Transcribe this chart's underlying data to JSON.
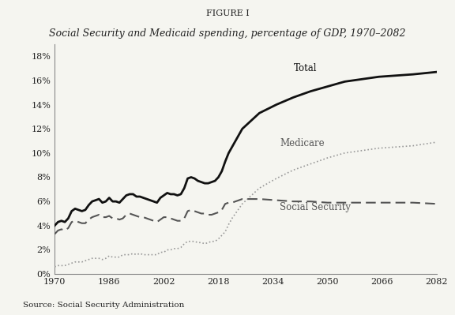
{
  "figure_label": "FIGURE I",
  "title": "Social Security and Medicaid spending, percentage of GDP, 1970–2082",
  "source": "Source: Social Security Administration",
  "background_color": "#f5f5f0",
  "xlim": [
    1970,
    2082
  ],
  "ylim": [
    0,
    0.19
  ],
  "xticks": [
    1970,
    1986,
    2002,
    2018,
    2034,
    2050,
    2066,
    2082
  ],
  "yticks": [
    0.0,
    0.02,
    0.04,
    0.06,
    0.08,
    0.1,
    0.12,
    0.14,
    0.16,
    0.18
  ],
  "total_years": [
    1970,
    1971,
    1972,
    1973,
    1974,
    1975,
    1976,
    1977,
    1978,
    1979,
    1980,
    1981,
    1982,
    1983,
    1984,
    1985,
    1986,
    1987,
    1988,
    1989,
    1990,
    1991,
    1992,
    1993,
    1994,
    1995,
    1996,
    1997,
    1998,
    1999,
    2000,
    2001,
    2002,
    2003,
    2004,
    2005,
    2006,
    2007,
    2008,
    2009,
    2010,
    2011,
    2012,
    2013,
    2014,
    2015,
    2016,
    2017,
    2018,
    2019,
    2020,
    2021,
    2022,
    2023,
    2024,
    2025,
    2030,
    2035,
    2040,
    2045,
    2050,
    2055,
    2060,
    2065,
    2070,
    2075,
    2082
  ],
  "total_values": [
    0.04,
    0.043,
    0.044,
    0.043,
    0.046,
    0.052,
    0.054,
    0.053,
    0.052,
    0.053,
    0.057,
    0.06,
    0.061,
    0.062,
    0.059,
    0.06,
    0.063,
    0.06,
    0.06,
    0.059,
    0.062,
    0.065,
    0.066,
    0.066,
    0.064,
    0.064,
    0.063,
    0.062,
    0.061,
    0.06,
    0.059,
    0.063,
    0.065,
    0.067,
    0.066,
    0.066,
    0.065,
    0.066,
    0.071,
    0.079,
    0.08,
    0.079,
    0.077,
    0.076,
    0.075,
    0.075,
    0.076,
    0.077,
    0.08,
    0.085,
    0.093,
    0.1,
    0.105,
    0.11,
    0.115,
    0.12,
    0.133,
    0.14,
    0.146,
    0.151,
    0.155,
    0.159,
    0.161,
    0.163,
    0.164,
    0.165,
    0.167
  ],
  "ss_years": [
    1970,
    1971,
    1972,
    1973,
    1974,
    1975,
    1976,
    1977,
    1978,
    1979,
    1980,
    1981,
    1982,
    1983,
    1984,
    1985,
    1986,
    1987,
    1988,
    1989,
    1990,
    1991,
    1992,
    1993,
    1994,
    1995,
    1996,
    1997,
    1998,
    1999,
    2000,
    2001,
    2002,
    2003,
    2004,
    2005,
    2006,
    2007,
    2008,
    2009,
    2010,
    2011,
    2012,
    2013,
    2014,
    2015,
    2016,
    2017,
    2018,
    2019,
    2020,
    2021,
    2022,
    2023,
    2024,
    2025,
    2030,
    2035,
    2040,
    2045,
    2050,
    2055,
    2060,
    2065,
    2070,
    2075,
    2082
  ],
  "ss_values": [
    0.033,
    0.036,
    0.037,
    0.036,
    0.038,
    0.043,
    0.044,
    0.043,
    0.042,
    0.042,
    0.045,
    0.047,
    0.048,
    0.049,
    0.047,
    0.047,
    0.048,
    0.046,
    0.046,
    0.045,
    0.046,
    0.049,
    0.05,
    0.049,
    0.048,
    0.047,
    0.047,
    0.046,
    0.045,
    0.044,
    0.043,
    0.045,
    0.047,
    0.047,
    0.046,
    0.045,
    0.044,
    0.044,
    0.046,
    0.052,
    0.053,
    0.052,
    0.051,
    0.05,
    0.05,
    0.049,
    0.049,
    0.05,
    0.051,
    0.053,
    0.058,
    0.059,
    0.059,
    0.06,
    0.061,
    0.062,
    0.062,
    0.061,
    0.06,
    0.06,
    0.059,
    0.059,
    0.059,
    0.059,
    0.059,
    0.059,
    0.058
  ],
  "medicare_years": [
    1970,
    1971,
    1972,
    1973,
    1974,
    1975,
    1976,
    1977,
    1978,
    1979,
    1980,
    1981,
    1982,
    1983,
    1984,
    1985,
    1986,
    1987,
    1988,
    1989,
    1990,
    1991,
    1992,
    1993,
    1994,
    1995,
    1996,
    1997,
    1998,
    1999,
    2000,
    2001,
    2002,
    2003,
    2004,
    2005,
    2006,
    2007,
    2008,
    2009,
    2010,
    2011,
    2012,
    2013,
    2014,
    2015,
    2016,
    2017,
    2018,
    2019,
    2020,
    2021,
    2022,
    2023,
    2024,
    2025,
    2030,
    2035,
    2040,
    2045,
    2050,
    2055,
    2060,
    2065,
    2070,
    2075,
    2082
  ],
  "medicare_values": [
    0.006,
    0.007,
    0.007,
    0.007,
    0.008,
    0.009,
    0.01,
    0.01,
    0.01,
    0.011,
    0.012,
    0.013,
    0.013,
    0.013,
    0.012,
    0.013,
    0.015,
    0.014,
    0.014,
    0.014,
    0.016,
    0.016,
    0.016,
    0.017,
    0.016,
    0.017,
    0.016,
    0.016,
    0.016,
    0.016,
    0.016,
    0.018,
    0.018,
    0.02,
    0.02,
    0.021,
    0.021,
    0.022,
    0.025,
    0.027,
    0.027,
    0.027,
    0.026,
    0.026,
    0.025,
    0.026,
    0.027,
    0.027,
    0.029,
    0.032,
    0.035,
    0.041,
    0.046,
    0.05,
    0.054,
    0.058,
    0.071,
    0.079,
    0.086,
    0.091,
    0.096,
    0.1,
    0.102,
    0.104,
    0.105,
    0.106,
    0.109
  ],
  "total_color": "#111111",
  "ss_color": "#555555",
  "medicare_color": "#999999",
  "total_lw": 2.0,
  "ss_lw": 1.5,
  "medicare_lw": 1.2,
  "label_total": "Total",
  "label_ss": "Social Security",
  "label_medicare": "Medicare"
}
